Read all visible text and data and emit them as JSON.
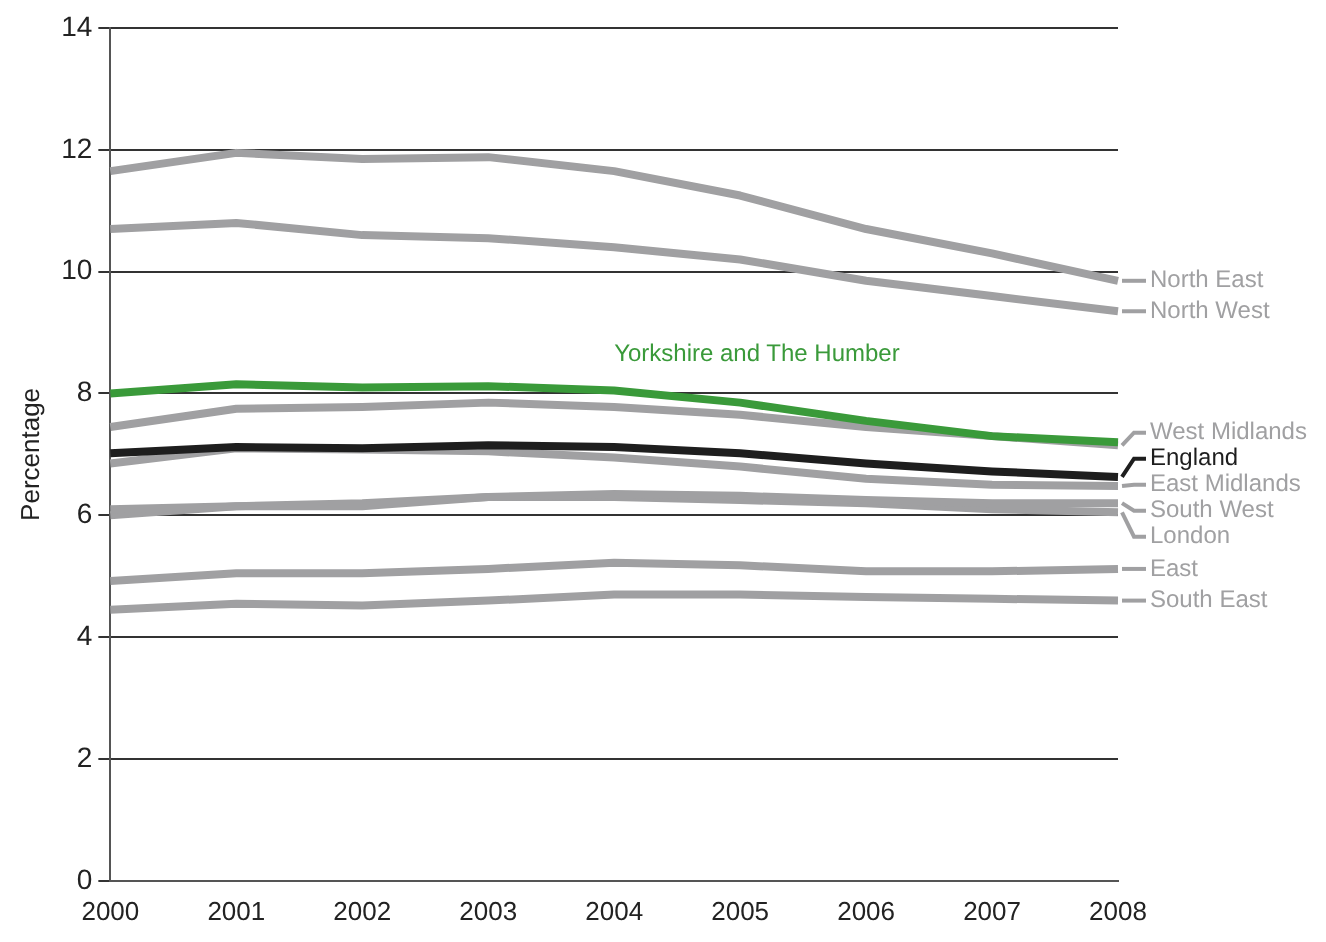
{
  "chart_data": {
    "type": "line",
    "ylabel": "Percentage",
    "categories": [
      "2000",
      "2001",
      "2002",
      "2003",
      "2004",
      "2005",
      "2006",
      "2007",
      "2008"
    ],
    "ylim": [
      0,
      14
    ],
    "yticks": [
      0,
      2,
      4,
      6,
      8,
      10,
      12,
      14
    ],
    "grid": "y",
    "legend": "right",
    "marker": "none",
    "line_style": "solid",
    "series": [
      {
        "name": "North East",
        "color": "#a0a0a2",
        "values": [
          11.65,
          11.95,
          11.85,
          11.88,
          11.65,
          11.25,
          10.7,
          10.3,
          9.85
        ]
      },
      {
        "name": "North West",
        "color": "#a0a0a2",
        "values": [
          10.7,
          10.8,
          10.6,
          10.55,
          10.4,
          10.2,
          9.85,
          9.6,
          9.35
        ]
      },
      {
        "name": "Yorkshire and The Humber",
        "color": "#3a9a3a",
        "values": [
          8.0,
          8.15,
          8.1,
          8.12,
          8.05,
          7.85,
          7.55,
          7.3,
          7.2
        ]
      },
      {
        "name": "West Midlands",
        "color": "#a0a0a2",
        "values": [
          7.45,
          7.75,
          7.78,
          7.85,
          7.78,
          7.65,
          7.45,
          7.3,
          7.15
        ]
      },
      {
        "name": "England",
        "color": "#1e1e1e",
        "values": [
          7.02,
          7.12,
          7.1,
          7.15,
          7.12,
          7.02,
          6.85,
          6.72,
          6.63
        ]
      },
      {
        "name": "East Midlands",
        "color": "#a0a0a2",
        "values": [
          6.85,
          7.1,
          7.08,
          7.05,
          6.95,
          6.8,
          6.6,
          6.5,
          6.48
        ]
      },
      {
        "name": "South West",
        "color": "#a0a0a2",
        "values": [
          6.1,
          6.15,
          6.15,
          6.3,
          6.35,
          6.32,
          6.25,
          6.2,
          6.2
        ]
      },
      {
        "name": "London",
        "color": "#a0a0a2",
        "values": [
          6.0,
          6.15,
          6.2,
          6.3,
          6.3,
          6.25,
          6.2,
          6.1,
          6.05
        ]
      },
      {
        "name": "East",
        "color": "#a0a0a2",
        "values": [
          4.92,
          5.05,
          5.05,
          5.12,
          5.22,
          5.18,
          5.08,
          5.08,
          5.12
        ]
      },
      {
        "name": "South East",
        "color": "#a0a0a2",
        "values": [
          4.45,
          4.55,
          4.52,
          4.6,
          4.7,
          4.7,
          4.66,
          4.63,
          4.6
        ]
      }
    ]
  }
}
